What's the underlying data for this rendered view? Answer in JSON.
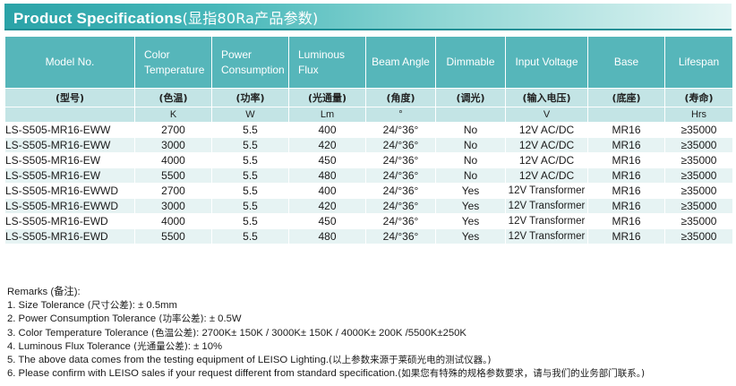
{
  "banner": {
    "title_en": "Product Specifications",
    "title_cn": "(显指80Ra产品参数)"
  },
  "table": {
    "headers": [
      {
        "en": "Model No.",
        "cn": "(型号)",
        "unit": ""
      },
      {
        "en": "Color Temperature",
        "cn": "(色温)",
        "unit": "K"
      },
      {
        "en": "Power Consumption",
        "cn": "(功率)",
        "unit": "W"
      },
      {
        "en": "Luminous Flux",
        "cn": "(光通量)",
        "unit": "Lm"
      },
      {
        "en": "Beam Angle",
        "cn": "(角度)",
        "unit": "°"
      },
      {
        "en": "Dimmable",
        "cn": "(调光)",
        "unit": ""
      },
      {
        "en": "Input Voltage",
        "cn": "(输入电压)",
        "unit": "V"
      },
      {
        "en": "Base",
        "cn": "(底座)",
        "unit": ""
      },
      {
        "en": "Lifespan",
        "cn": "(寿命)",
        "unit": "Hrs"
      }
    ],
    "rows": [
      [
        "LS-S505-MR16-EWW",
        "2700",
        "5.5",
        "400",
        "24/°36°",
        "No",
        "12V AC/DC",
        "MR16",
        "≥35000"
      ],
      [
        "LS-S505-MR16-EWW",
        "3000",
        "5.5",
        "420",
        "24/°36°",
        "No",
        "12V AC/DC",
        "MR16",
        "≥35000"
      ],
      [
        "LS-S505-MR16-EW",
        "4000",
        "5.5",
        "450",
        "24/°36°",
        "No",
        "12V AC/DC",
        "MR16",
        "≥35000"
      ],
      [
        "LS-S505-MR16-EW",
        "5500",
        "5.5",
        "480",
        "24/°36°",
        "No",
        "12V AC/DC",
        "MR16",
        "≥35000"
      ],
      [
        "LS-S505-MR16-EWWD",
        "2700",
        "5.5",
        "400",
        "24/°36°",
        "Yes",
        "12V Transformer",
        "MR16",
        "≥35000"
      ],
      [
        "LS-S505-MR16-EWWD",
        "3000",
        "5.5",
        "420",
        "24/°36°",
        "Yes",
        "12V Transformer",
        "MR16",
        "≥35000"
      ],
      [
        "LS-S505-MR16-EWD",
        "4000",
        "5.5",
        "450",
        "24/°36°",
        "Yes",
        "12V Transformer",
        "MR16",
        "≥35000"
      ],
      [
        "LS-S505-MR16-EWD",
        "5500",
        "5.5",
        "480",
        "24/°36°",
        "Yes",
        "12V Transformer",
        "MR16",
        "≥35000"
      ]
    ]
  },
  "remarks": {
    "heading": "Remarks (备注):",
    "lines": [
      {
        "en": "1. Size Tolerance ",
        "cn": "(尺寸公差)",
        "val": ": ± 0.5mm"
      },
      {
        "en": "2. Power Consumption Tolerance ",
        "cn": "(功率公差)",
        "val": ": ± 0.5W"
      },
      {
        "en": "3. Color Temperature Tolerance ",
        "cn": "(色温公差)",
        "val": ": 2700K± 150K  /  3000K± 150K  /  4000K± 200K  /5500K±250K"
      },
      {
        "en": "4. Luminous Flux Tolerance ",
        "cn": "(光通量公差)",
        "val": ": ± 10%"
      },
      {
        "en": "5. The above data comes from the testing equipment of LEISO Lighting.",
        "cn": "(以上参数来源于莱硕光电的测试仪器。)",
        "val": ""
      },
      {
        "en": "6. Please confirm with LEISO sales if your request different from standard specification.",
        "cn": "(如果您有特殊的规格参数要求，请与我们的业务部门联系。)",
        "val": ""
      }
    ]
  }
}
